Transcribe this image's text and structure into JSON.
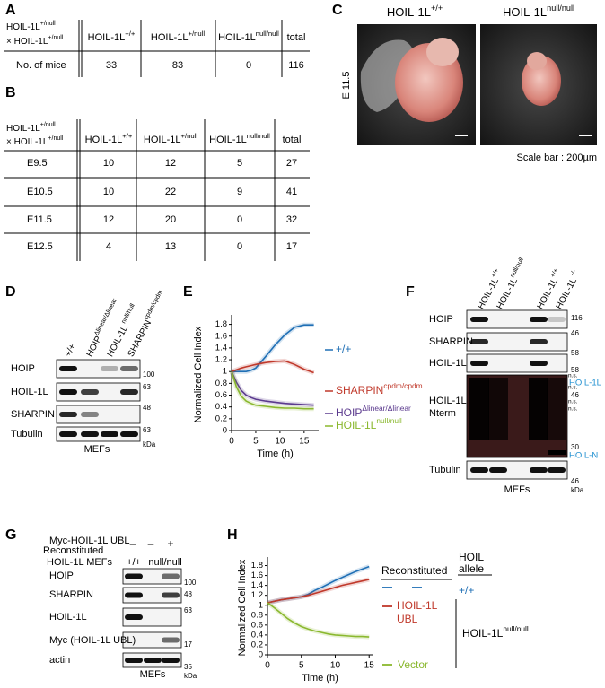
{
  "panel_a": {
    "label": "A",
    "cross": [
      {
        "base": "HOIL-1L",
        "sup": "+/null"
      },
      {
        "base": "× HOIL-1L",
        "sup": "+/null"
      }
    ],
    "columns": [
      {
        "base": "HOIL-1L",
        "sup": "+/+"
      },
      {
        "base": "HOIL-1L",
        "sup": "+/null"
      },
      {
        "base": "HOIL-1L",
        "sup": "null/null"
      },
      "total"
    ],
    "row_label": "No. of mice",
    "values": [
      33,
      83,
      0,
      116
    ]
  },
  "panel_b": {
    "label": "B",
    "cross": [
      {
        "base": "HOIL-1L",
        "sup": "+/null"
      },
      {
        "base": "× HOIL-1L",
        "sup": "+/null"
      }
    ],
    "columns": [
      {
        "base": "HOIL-1L",
        "sup": "+/+"
      },
      {
        "base": "HOIL-1L",
        "sup": "+/null"
      },
      {
        "base": "HOIL-1L",
        "sup": "null/null"
      },
      "total"
    ],
    "rows": [
      {
        "stage": "E9.5",
        "values": [
          10,
          12,
          5,
          27
        ]
      },
      {
        "stage": "E10.5",
        "values": [
          10,
          22,
          9,
          41
        ]
      },
      {
        "stage": "E11.5",
        "values": [
          12,
          20,
          0,
          32
        ]
      },
      {
        "stage": "E12.5",
        "values": [
          4,
          13,
          0,
          17
        ]
      }
    ]
  },
  "panel_c": {
    "label": "C",
    "genotypes": [
      {
        "base": "HOIL-1L",
        "sup": "+/+"
      },
      {
        "base": "HOIL-1L",
        "sup": "null/null"
      }
    ],
    "stage": "E 11.5",
    "scale": "Scale bar : 200µm"
  },
  "panel_d": {
    "label": "D",
    "lanes": [
      "+/+",
      {
        "base": "HOIP",
        "sup": "Δlinear/Δlinear"
      },
      {
        "base": "HOIL-1L",
        "sup": " null/null"
      },
      {
        "base": "SHARPIN",
        "sup": "cpdm/cpdm"
      }
    ],
    "rows": [
      "HOIP",
      "HOIL-1L",
      "SHARPIN",
      "Tubulin"
    ],
    "markers": [
      100,
      63,
      48,
      63
    ],
    "unit": "kDa",
    "cells": "MEFs"
  },
  "panel_e": {
    "label": "E",
    "type": "line",
    "y_label": "Normalized Cell Index",
    "x_label": "Time (h)",
    "x": [
      0,
      1,
      2,
      3,
      4,
      5,
      7,
      9,
      11,
      13,
      15,
      17
    ],
    "xlim": [
      0,
      18
    ],
    "ylim": [
      0,
      1.9
    ],
    "xticks": [
      0,
      5,
      10,
      15
    ],
    "yticks": [
      0,
      0.2,
      0.4,
      0.6,
      0.8,
      1,
      1.2,
      1.4,
      1.6,
      1.8
    ],
    "series": [
      {
        "name": "+/+",
        "color": "#1f6fb5",
        "values": [
          1.0,
          1.0,
          1.0,
          1.0,
          1.02,
          1.06,
          1.25,
          1.45,
          1.62,
          1.75,
          1.79,
          1.79
        ]
      },
      {
        "name": {
          "base": "SHARPIN",
          "sup": "cpdm/cpdm"
        },
        "color": "#c0392b",
        "values": [
          1.0,
          1.03,
          1.06,
          1.08,
          1.1,
          1.12,
          1.15,
          1.17,
          1.18,
          1.12,
          1.04,
          0.98
        ]
      },
      {
        "name": {
          "base": "HOIP",
          "sup": "Δlinear/Δlinear"
        },
        "color": "#5b3a8e",
        "values": [
          1.0,
          0.82,
          0.68,
          0.6,
          0.56,
          0.53,
          0.5,
          0.48,
          0.46,
          0.45,
          0.44,
          0.43
        ]
      },
      {
        "name": {
          "base": "HOIL-1L",
          "sup": "null/null"
        },
        "color": "#8ab82e",
        "values": [
          1.0,
          0.74,
          0.58,
          0.5,
          0.46,
          0.43,
          0.41,
          0.39,
          0.38,
          0.38,
          0.37,
          0.37
        ]
      }
    ]
  },
  "panel_f": {
    "label": "F",
    "lanes": [
      {
        "base": "HOIL-1L",
        "sup": "+/+"
      },
      {
        "base": "HOIL-1L",
        "sup": "null/null"
      },
      {
        "base": "HOIL-1L",
        "sup": "+/+"
      },
      {
        "base": "HOIL-1L",
        "sup": " -/-"
      }
    ],
    "rows": [
      "HOIP",
      "SHARPIN",
      "HOIL-1L",
      [
        "HOIL-1L",
        "Nterm"
      ],
      "Tubulin"
    ],
    "markers": [
      116,
      46,
      58,
      58,
      46,
      30,
      46
    ],
    "ns": [
      "n.s.",
      "n.s.",
      "n.s.",
      "n.s."
    ],
    "band_labels": [
      "HOIL-1L",
      "HOIL-N"
    ],
    "unit": "kDa",
    "cells": "MEFs"
  },
  "panel_g": {
    "label": "G",
    "construct": "Myc-HOIL-1L UBL",
    "reconstituted": "Reconstituted",
    "lane_marks": [
      "–",
      "–",
      "+"
    ],
    "genotype_row": "HOIL-1L MEFs",
    "genotypes": [
      "+/+",
      "null/null"
    ],
    "rows": [
      "HOIP",
      "SHARPIN",
      "HOIL-1L",
      "Myc (HOIL-1L UBL)",
      "actin"
    ],
    "markers": [
      100,
      48,
      63,
      17,
      35
    ],
    "unit": "kDa",
    "cells": "MEFs"
  },
  "panel_h": {
    "label": "H",
    "type": "line",
    "y_label": "Normalized Cell Index",
    "x_label": "Time (h)",
    "x": [
      0,
      1,
      2,
      3,
      4,
      5,
      6,
      7,
      8,
      9,
      10,
      11,
      12,
      13,
      14,
      15
    ],
    "xlim": [
      0,
      15.5
    ],
    "ylim": [
      0,
      1.9
    ],
    "xticks": [
      0,
      5,
      10,
      15
    ],
    "yticks": [
      0,
      0.2,
      0.4,
      0.6,
      0.8,
      1,
      1.2,
      1.4,
      1.6,
      1.8
    ],
    "reconstituted": "Reconstituted",
    "allele_header": [
      "HOIL",
      "allele"
    ],
    "allele_wt": "+/+",
    "allele_null": {
      "base": "HOIL-1L",
      "sup": "null/null"
    },
    "series": [
      {
        "color": "#1f6fb5",
        "values": [
          1.05,
          1.08,
          1.11,
          1.13,
          1.15,
          1.17,
          1.22,
          1.3,
          1.36,
          1.43,
          1.5,
          1.56,
          1.62,
          1.68,
          1.73,
          1.78
        ]
      },
      {
        "name": "HOIL-1L UBL",
        "color": "#c0392b",
        "values": [
          1.05,
          1.08,
          1.11,
          1.13,
          1.15,
          1.17,
          1.2,
          1.24,
          1.28,
          1.32,
          1.36,
          1.4,
          1.43,
          1.46,
          1.49,
          1.52
        ]
      },
      {
        "name": "Vector",
        "color": "#8ab82e",
        "values": [
          1.05,
          0.95,
          0.84,
          0.73,
          0.64,
          0.57,
          0.52,
          0.48,
          0.45,
          0.42,
          0.4,
          0.39,
          0.38,
          0.37,
          0.37,
          0.36
        ]
      }
    ]
  }
}
